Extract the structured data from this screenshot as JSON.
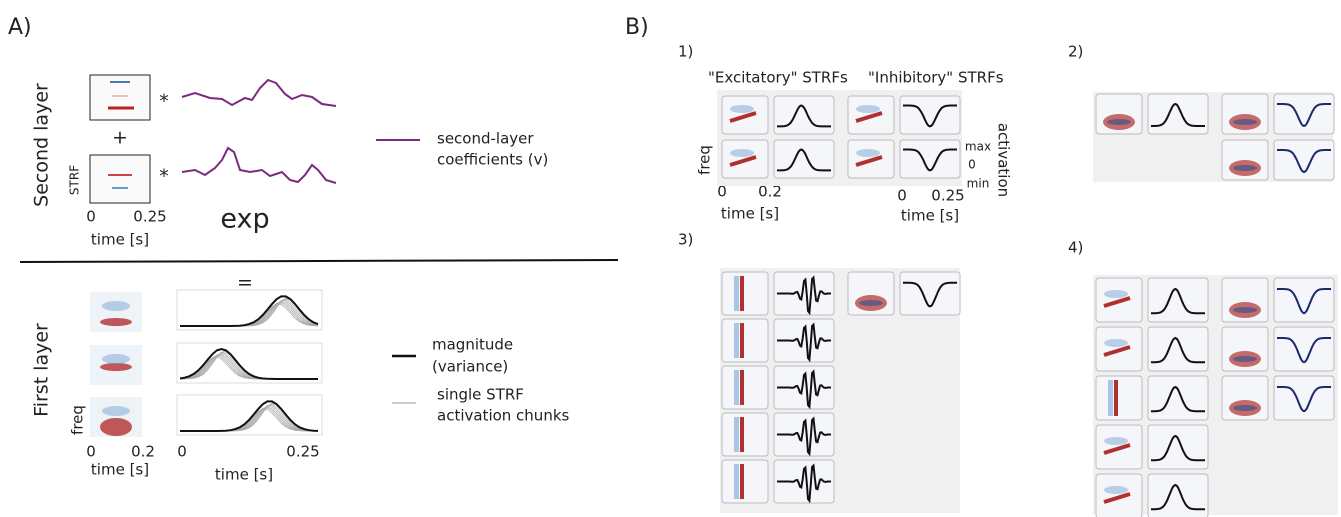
{
  "panel_a": {
    "label": "A)",
    "second_layer": {
      "title": "Second layer",
      "ops": [
        "*",
        "*"
      ],
      "plus": "+",
      "strf_label": "STRF",
      "x_ticks": [
        "0",
        "0.25"
      ],
      "x_label": "time [s]",
      "exp": "exp"
    },
    "legend_second": [
      "second-layer",
      "coefficients (v)"
    ],
    "first_layer": {
      "title": "First layer",
      "equals": "=",
      "freq": "freq",
      "strf_ticks": [
        "0",
        "0.2"
      ],
      "strf_x_label": "time [s]",
      "act_ticks": [
        "0",
        "0.25"
      ],
      "act_x_label": "time [s]"
    },
    "legend_first": [
      {
        "lines": [
          "magnitude",
          "(variance)"
        ]
      },
      {
        "lines": [
          "single STRF",
          "activation chunks"
        ]
      }
    ]
  },
  "panel_b": {
    "label": "B)",
    "group_1": {
      "label": "1)",
      "excitatory_title": "\"Excitatory\" STRFs",
      "inhibitory_title": "\"Inhibitory\" STRFs",
      "freq": "freq",
      "strf_ticks": [
        "0",
        "0.2"
      ],
      "strf_x_label": "time [s]",
      "act_ticks": [
        "0",
        "0.25"
      ],
      "act_x_label": "time [s]",
      "scale": [
        "max",
        "0",
        "min"
      ],
      "activation": "activation"
    },
    "group_2": {
      "label": "2)"
    },
    "group_3": {
      "label": "3)"
    },
    "group_4": {
      "label": "4)"
    }
  }
}
